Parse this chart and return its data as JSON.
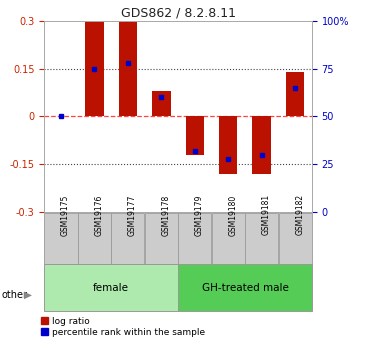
{
  "title": "GDS862 / 8.2.8.11",
  "samples": [
    "GSM19175",
    "GSM19176",
    "GSM19177",
    "GSM19178",
    "GSM19179",
    "GSM19180",
    "GSM19181",
    "GSM19182"
  ],
  "log_ratios": [
    0.0,
    0.3,
    0.3,
    0.08,
    -0.12,
    -0.18,
    -0.18,
    0.14
  ],
  "percentile_ranks": [
    50,
    75,
    78,
    60,
    32,
    28,
    30,
    65
  ],
  "groups": [
    {
      "label": "female",
      "start": 0,
      "end": 4,
      "color": "#aeeaae"
    },
    {
      "label": "GH-treated male",
      "start": 4,
      "end": 8,
      "color": "#55cc55"
    }
  ],
  "ylim": [
    -0.3,
    0.3
  ],
  "yticks_left": [
    -0.3,
    -0.15,
    0,
    0.15,
    0.3
  ],
  "yticks_right_vals": [
    0,
    25,
    50,
    75,
    100
  ],
  "bar_color": "#bb1100",
  "blue_color": "#0000cc",
  "title_color": "#222222",
  "left_label_color": "#cc2200",
  "right_label_color": "#0000cc",
  "zero_line_color": "#ff4444",
  "dotted_line_color": "#444444",
  "background_color": "#ffffff",
  "bar_width": 0.55,
  "sample_box_color": "#cccccc",
  "sample_box_edge": "#999999"
}
